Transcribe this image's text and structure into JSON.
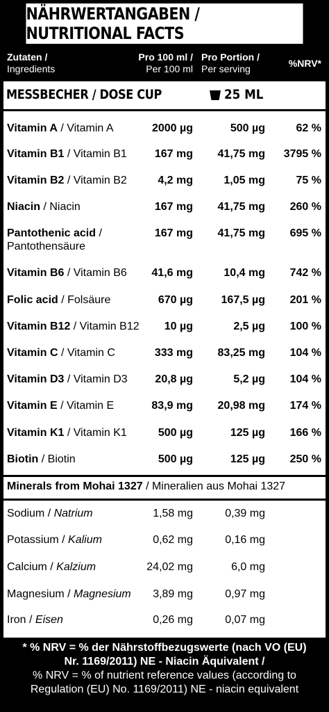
{
  "title": "NÄHRWERTANGABEN / NUTRITIONAL FACTS",
  "header": {
    "col0_de": "Zutaten /",
    "col0_en": "Ingredients",
    "col1_de": "Pro 100 ml /",
    "col1_en": "Per 100 ml",
    "col2_de": "Pro Portion /",
    "col2_en": "Per serving",
    "col3": "%NRV*"
  },
  "dose": {
    "label": "MESSBECHER / DOSE CUP",
    "icon": "cup-icon",
    "amount": "25 ML"
  },
  "vitamins": [
    {
      "name_en": "Vitamin A",
      "name_de": " / Vitamin A",
      "per100": "2000 µg",
      "serving": "500 µg",
      "nrv": "62 %"
    },
    {
      "name_en": "Vitamin B1",
      "name_de": " / Vitamin B1",
      "per100": "167 mg",
      "serving": "41,75 mg",
      "nrv": "3795 %"
    },
    {
      "name_en": "Vitamin B2",
      "name_de": " / Vitamin B2",
      "per100": "4,2 mg",
      "serving": "1,05 mg",
      "nrv": "75 %"
    },
    {
      "name_en": "Niacin",
      "name_de": " / Niacin",
      "per100": "167 mg",
      "serving": "41,75 mg",
      "nrv": "260 %"
    },
    {
      "name_en": "Pantothenic acid",
      "name_de": " /",
      "name_de2": "Pantothensäure",
      "per100": "167 mg",
      "serving": "41,75 mg",
      "nrv": "695 %"
    },
    {
      "name_en": "Vitamin B6",
      "name_de": " / Vitamin B6",
      "per100": "41,6 mg",
      "serving": "10,4 mg",
      "nrv": "742 %"
    },
    {
      "name_en": "Folic acid",
      "name_de": " / Folsäure",
      "per100": "670 µg",
      "serving": "167,5 µg",
      "nrv": "201 %"
    },
    {
      "name_en": "Vitamin B12",
      "name_de": " / Vitamin B12",
      "per100": "10 µg",
      "serving": "2,5 µg",
      "nrv": "100 %"
    },
    {
      "name_en": "Vitamin C",
      "name_de": " / Vitamin C",
      "per100": "333 mg",
      "serving": "83,25 mg",
      "nrv": "104 %"
    },
    {
      "name_en": "Vitamin D3",
      "name_de": " / Vitamin D3",
      "per100": "20,8 µg",
      "serving": "5,2 µg",
      "nrv": "104 %"
    },
    {
      "name_en": "Vitamin E",
      "name_de": " / Vitamin E",
      "per100": "83,9 mg",
      "serving": "20,98 mg",
      "nrv": "174 %"
    },
    {
      "name_en": "Vitamin K1",
      "name_de": " / Vitamin K1",
      "per100": "500 µg",
      "serving": "125 µg",
      "nrv": "166 %"
    },
    {
      "name_en": "Biotin",
      "name_de": " / Biotin",
      "per100": "500 µg",
      "serving": "125 µg",
      "nrv": "250 %"
    }
  ],
  "minerals_title_en": "Minerals from Mohai 1327",
  "minerals_title_de": " / Mineralien aus Mohai 1327",
  "minerals": [
    {
      "name_en": "Sodium",
      "name_de": "Natrium",
      "per100": "1,58 mg",
      "serving": "0,39 mg"
    },
    {
      "name_en": "Potassium",
      "name_de": "Kalium",
      "per100": "0,62 mg",
      "serving": "0,16 mg"
    },
    {
      "name_en": "Calcium",
      "name_de": "Kalzium",
      "per100": "24,02 mg",
      "serving": "6,0 mg"
    },
    {
      "name_en": "Magnesium",
      "name_de": "Magnesium",
      "per100": "3,89 mg",
      "serving": "0,97 mg"
    },
    {
      "name_en": "Iron",
      "name_de": "Eisen",
      "per100": "0,26 mg",
      "serving": "0,07 mg"
    }
  ],
  "footnote": {
    "de_line1": "* % NRV = % der Nährstoffbezugswerte (nach VO (EU)",
    "de_line2": "Nr. 1169/2011) NE - Niacin Äquivalent /",
    "en_line1": "% NRV = % of nutrient reference values (according to",
    "en_line2": "Regulation (EU) No. 1169/2011)  NE - niacin equivalent"
  }
}
